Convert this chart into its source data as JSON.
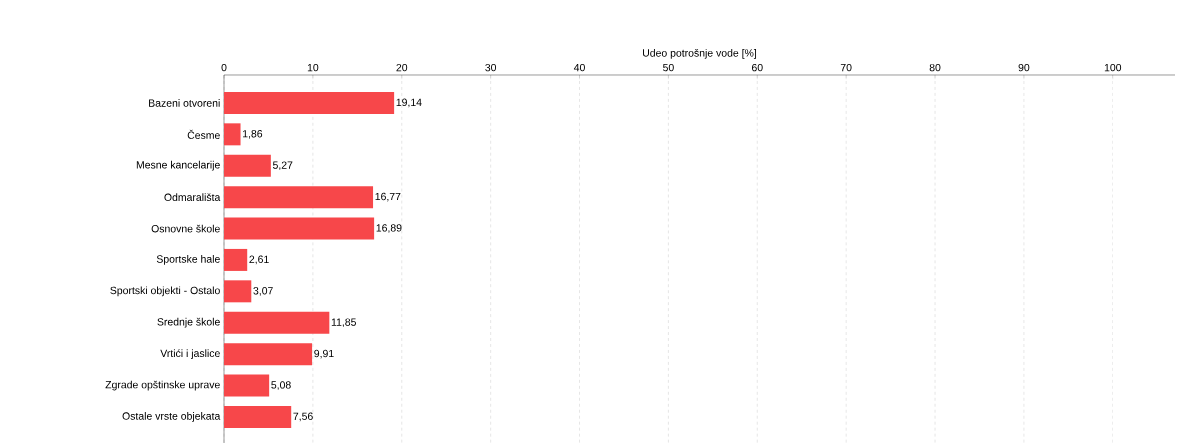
{
  "chart_data": {
    "type": "bar",
    "orientation": "horizontal",
    "xlabel": "Udeo potrošnje vode [%]",
    "categories": [
      "Bazeni otvoreni",
      "Česme",
      "Mesne kancelarije",
      "Odmarališta",
      "Osnovne škole",
      "Sportske hale",
      "Sportski objekti - Ostalo",
      "Srednje škole",
      "Vrtići i jaslice",
      "Zgrade opštinske uprave",
      "Ostale vrste objekata"
    ],
    "values": [
      19.14,
      1.86,
      5.27,
      16.77,
      16.89,
      2.61,
      3.07,
      11.85,
      9.91,
      5.08,
      7.56
    ],
    "value_labels": [
      "19,14",
      "1,86",
      "5,27",
      "16,77",
      "16,89",
      "2,61",
      "3,07",
      "11,85",
      "9,91",
      "5,08",
      "7,56"
    ],
    "color": "#f7474a",
    "xlim": [
      0,
      107
    ],
    "xticks": [
      0,
      10,
      20,
      30,
      40,
      50,
      60,
      70,
      80,
      90,
      100
    ],
    "grid": "x"
  }
}
